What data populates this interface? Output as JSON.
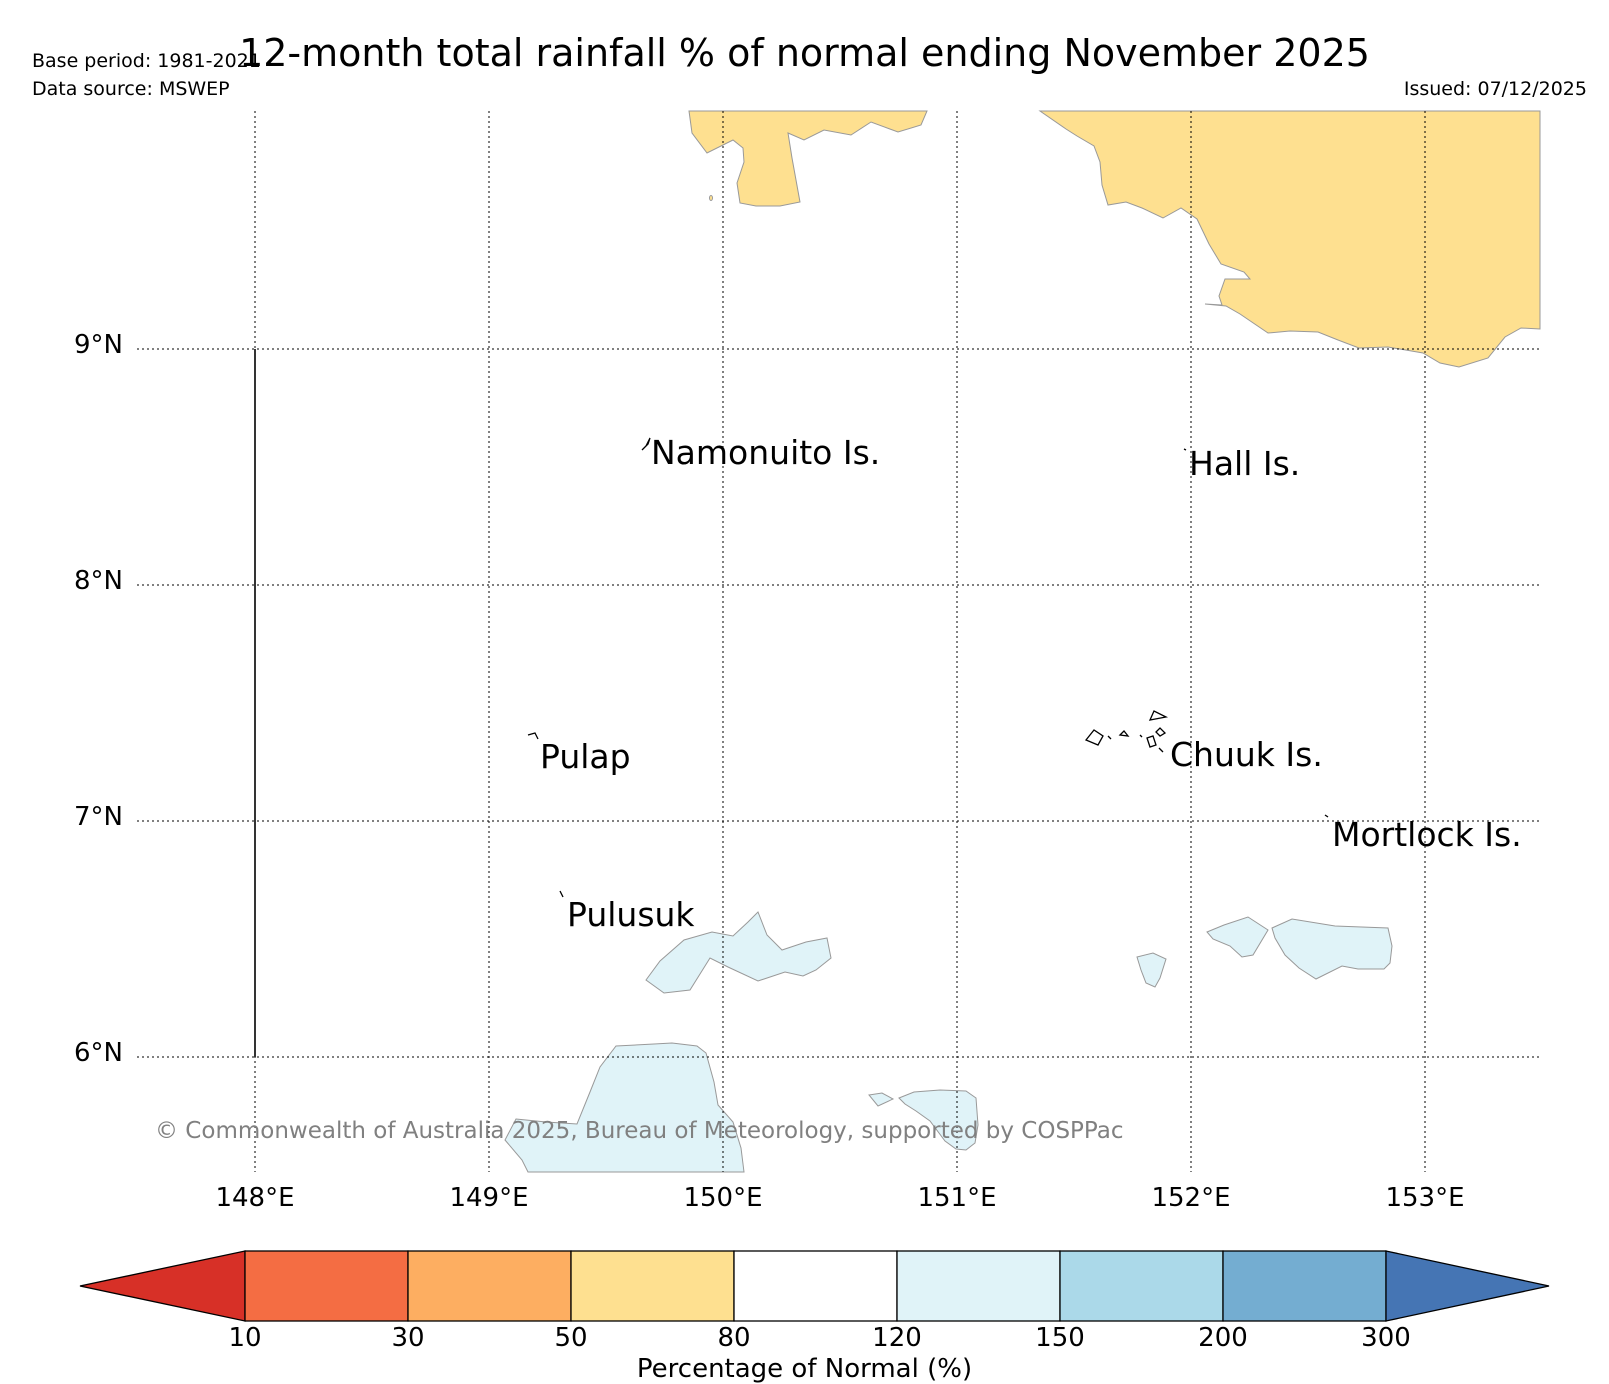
{
  "header": {
    "title": "12-month total rainfall % of normal ending November 2025",
    "base_period": "Base period: 1981-2021",
    "data_source": "Data source: MSWEP",
    "issued": "Issued: 07/12/2025"
  },
  "map": {
    "latitude_labels": [
      "9°N",
      "8°N",
      "7°N",
      "6°N"
    ],
    "longitude_labels": [
      "148°E",
      "149°E",
      "150°E",
      "151°E",
      "152°E",
      "153°E"
    ],
    "place_labels": [
      "Namonuito Is.",
      "Hall Is.",
      "Pulap",
      "Chuuk Is.",
      "Mortlock Is.",
      "Pulusuk"
    ],
    "copyright": "© Commonwealth of Australia 2025, Bureau of Meteorology, supported by COSPPac",
    "region_categories": [
      "50-80 (drier than normal)",
      "120-150 (wetter than normal)"
    ]
  },
  "colorbar": {
    "label": "Percentage of Normal (%)",
    "ticks": [
      "10",
      "30",
      "50",
      "80",
      "120",
      "150",
      "200",
      "300"
    ],
    "colors": [
      "#d73027",
      "#f46d43",
      "#fdae61",
      "#fee090",
      "#ffffff",
      "#e0f3f8",
      "#abd9e9",
      "#74add1",
      "#4575b4"
    ]
  },
  "colors": {
    "dry_fill": "#fee090",
    "wet_fill": "#e0f3f8",
    "grid": "#000000",
    "copyright_text": "#808080"
  }
}
